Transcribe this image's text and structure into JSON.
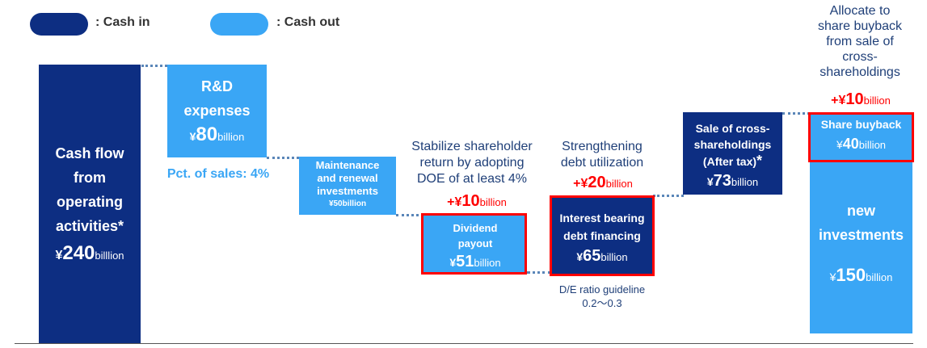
{
  "legend": {
    "cash_in_label": ": Cash in",
    "cash_out_label": ": Cash out"
  },
  "colors": {
    "cash_in": "#0d2e82",
    "cash_out": "#3aa6f5",
    "highlight": "#ff0000"
  },
  "operating_cf": {
    "lines": [
      "Cash flow",
      "from",
      "operating",
      "activities*"
    ],
    "value": "240",
    "currency": "¥",
    "unit": "billlion"
  },
  "rd": {
    "lines": [
      "R&D",
      "expenses"
    ],
    "value": "80",
    "currency": "¥",
    "unit": "billion",
    "note": "Pct. of sales: 4%"
  },
  "maintenance": {
    "lines": [
      "Maintenance",
      "and renewal",
      "investments"
    ],
    "value_text": "¥50billion"
  },
  "dividend": {
    "note_lines": [
      "Stabilize shareholder",
      "return by adopting",
      "DOE of at least 4%"
    ],
    "increase_prefix": "+¥",
    "increase_value": "10",
    "increase_unit": "billion",
    "lines": [
      "Dividend",
      "payout"
    ],
    "value": "51",
    "currency": "¥",
    "unit": "billion"
  },
  "debt": {
    "note_lines": [
      "Strengthening",
      "debt utilization"
    ],
    "increase_prefix": "+¥",
    "increase_value": "20",
    "increase_unit": "billion",
    "lines": [
      "Interest bearing",
      "debt financing"
    ],
    "value": "65",
    "currency": "¥",
    "unit": "billion",
    "guideline_lines": [
      "D/E ratio guideline",
      "0.2～0.3"
    ]
  },
  "cross_sale": {
    "lines": [
      "Sale of cross-",
      "shareholdings"
    ],
    "after_tax": "(After tax)",
    "asterisk": "*",
    "value": "73",
    "currency": "¥",
    "unit": "billion"
  },
  "buyback": {
    "note_lines": [
      "Allocate to",
      "share buyback",
      "from sale of",
      "cross-",
      "shareholdings"
    ],
    "increase_prefix": "+¥",
    "increase_value": "10",
    "increase_unit": "billion",
    "label": "Share buyback",
    "value": "40",
    "currency": "¥",
    "unit": "billion"
  },
  "new_investments": {
    "lines": [
      "new",
      "investments"
    ],
    "value": "150",
    "currency": "¥",
    "unit": "billion"
  }
}
